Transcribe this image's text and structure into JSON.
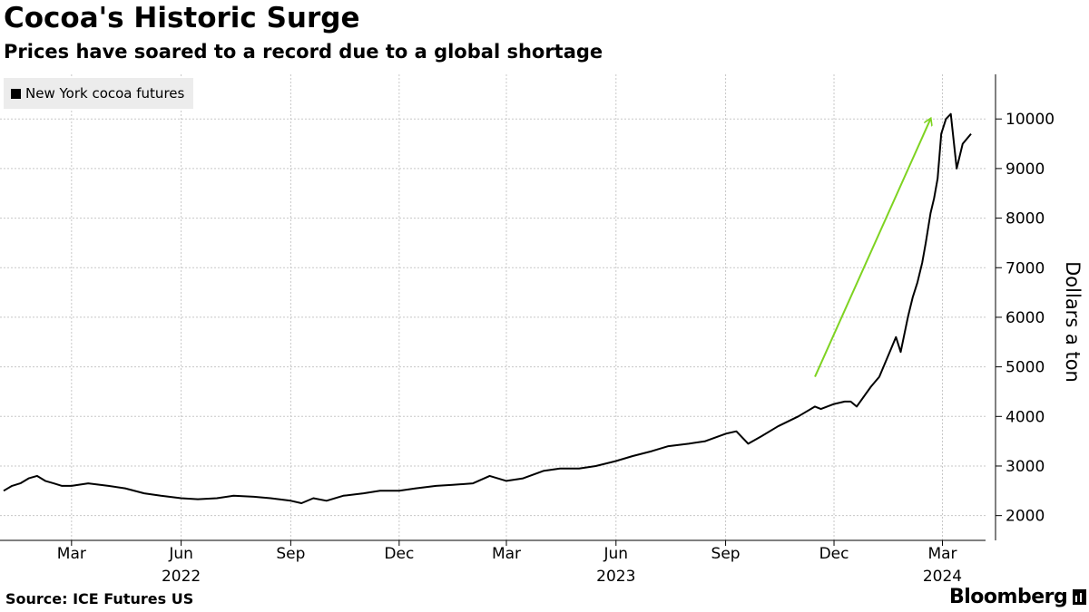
{
  "header": {
    "title": "Cocoa's Historic Surge",
    "subtitle": "Prices have soared to a record due to a global shortage"
  },
  "footer": {
    "source": "Source: ICE Futures US",
    "brand": "Bloomberg"
  },
  "colors": {
    "line": "#000000",
    "arrow": "#7ed321",
    "grid": "#c8c8c8",
    "legend_bg": "#ececec"
  },
  "chart_data": {
    "type": "line",
    "title": "Cocoa's Historic Surge",
    "subtitle": "Prices have soared to a record due to a global shortage",
    "ylabel": "Dollars a ton",
    "xlabel": "",
    "ylim": [
      1500,
      10900
    ],
    "xlim": [
      "2022-01-03",
      "2024-03-25"
    ],
    "y_ticks": [
      2000,
      3000,
      4000,
      5000,
      6000,
      7000,
      8000,
      9000,
      10000
    ],
    "x_ticks": [
      {
        "date": "2022-03-01",
        "label": "Mar"
      },
      {
        "date": "2022-06-01",
        "label": "Jun"
      },
      {
        "date": "2022-09-01",
        "label": "Sep"
      },
      {
        "date": "2022-12-01",
        "label": "Dec"
      },
      {
        "date": "2023-03-01",
        "label": "Mar"
      },
      {
        "date": "2023-06-01",
        "label": "Jun"
      },
      {
        "date": "2023-09-01",
        "label": "Sep"
      },
      {
        "date": "2023-12-01",
        "label": "Dec"
      },
      {
        "date": "2024-03-01",
        "label": "Mar"
      }
    ],
    "year_labels": [
      {
        "date": "2022-06-01",
        "label": "2022"
      },
      {
        "date": "2023-06-01",
        "label": "2023"
      },
      {
        "date": "2024-03-01",
        "label": "2024"
      }
    ],
    "grid": true,
    "legend_position": "top-left",
    "annotation": {
      "type": "arrow",
      "from": [
        "2023-11-15",
        4800
      ],
      "to": [
        "2024-02-20",
        10000
      ]
    },
    "series": [
      {
        "name": "New York cocoa futures",
        "x": [
          "2022-01-03",
          "2022-01-10",
          "2022-01-17",
          "2022-01-24",
          "2022-01-31",
          "2022-02-07",
          "2022-02-14",
          "2022-02-21",
          "2022-03-01",
          "2022-03-15",
          "2022-04-01",
          "2022-04-15",
          "2022-05-01",
          "2022-05-15",
          "2022-06-01",
          "2022-06-15",
          "2022-07-01",
          "2022-07-15",
          "2022-08-01",
          "2022-08-15",
          "2022-09-01",
          "2022-09-10",
          "2022-09-20",
          "2022-10-01",
          "2022-10-15",
          "2022-11-01",
          "2022-11-15",
          "2022-12-01",
          "2022-12-15",
          "2023-01-01",
          "2023-01-15",
          "2023-02-01",
          "2023-02-15",
          "2023-03-01",
          "2023-03-15",
          "2023-04-01",
          "2023-04-15",
          "2023-05-01",
          "2023-05-15",
          "2023-06-01",
          "2023-06-15",
          "2023-07-01",
          "2023-07-15",
          "2023-08-01",
          "2023-08-15",
          "2023-09-01",
          "2023-09-10",
          "2023-09-20",
          "2023-10-01",
          "2023-10-15",
          "2023-11-01",
          "2023-11-15",
          "2023-11-20",
          "2023-12-01",
          "2023-12-10",
          "2023-12-15",
          "2023-12-20",
          "2024-01-01",
          "2024-01-08",
          "2024-01-15",
          "2024-01-22",
          "2024-01-26",
          "2024-02-01",
          "2024-02-05",
          "2024-02-09",
          "2024-02-13",
          "2024-02-16",
          "2024-02-20",
          "2024-02-23",
          "2024-02-26",
          "2024-02-29",
          "2024-03-04",
          "2024-03-08",
          "2024-03-13",
          "2024-03-18",
          "2024-03-25"
        ],
        "values": [
          2500,
          2600,
          2650,
          2750,
          2800,
          2700,
          2650,
          2600,
          2600,
          2650,
          2600,
          2550,
          2450,
          2400,
          2350,
          2330,
          2350,
          2400,
          2380,
          2350,
          2300,
          2250,
          2350,
          2300,
          2400,
          2450,
          2500,
          2500,
          2550,
          2600,
          2620,
          2650,
          2800,
          2700,
          2750,
          2900,
          2950,
          2950,
          3000,
          3100,
          3200,
          3300,
          3400,
          3450,
          3500,
          3650,
          3700,
          3450,
          3600,
          3800,
          4000,
          4200,
          4150,
          4250,
          4300,
          4300,
          4200,
          4600,
          4800,
          5200,
          5600,
          5300,
          6000,
          6400,
          6700,
          7100,
          7500,
          8100,
          8400,
          8800,
          9700,
          10000,
          10100,
          9000,
          9500,
          9700
        ]
      }
    ]
  }
}
